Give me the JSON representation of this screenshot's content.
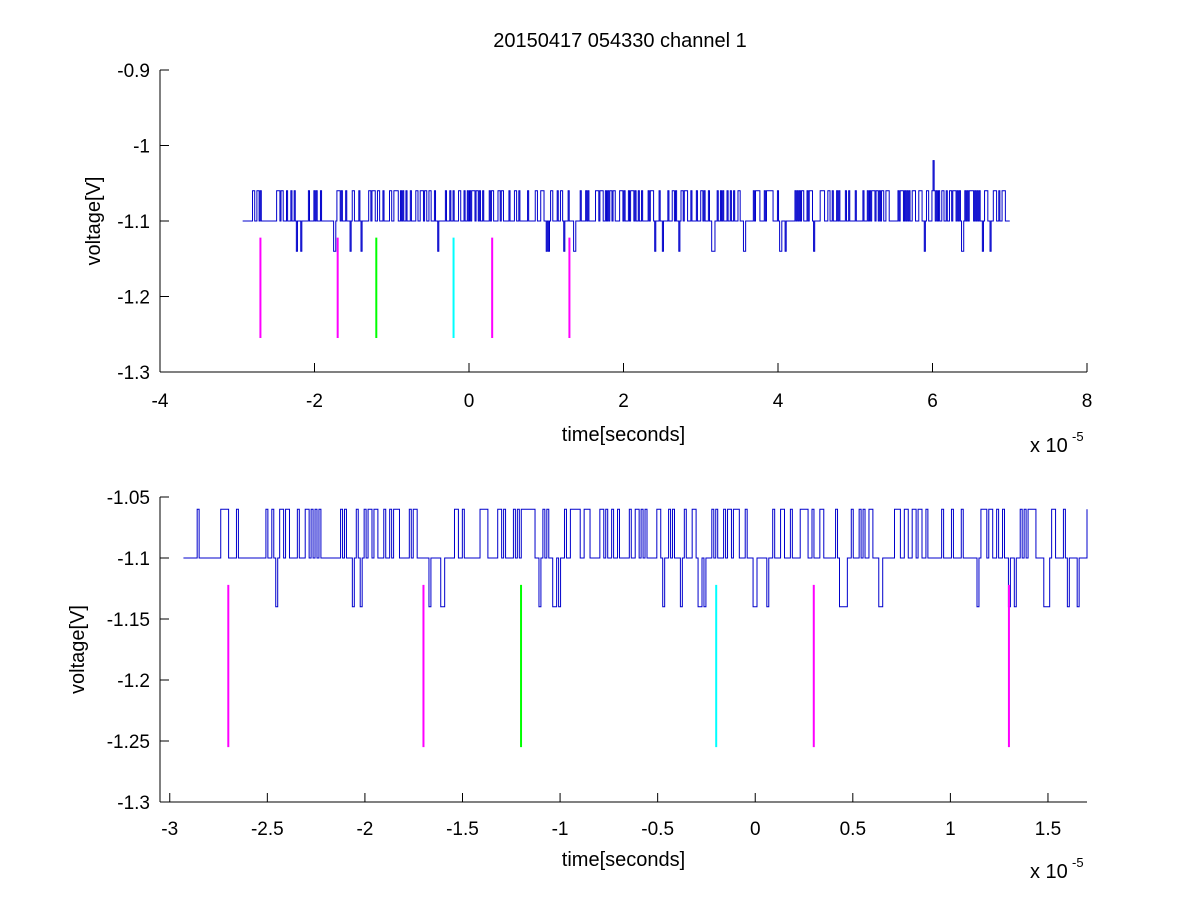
{
  "figure": {
    "title": "20150417 054330 channel 1"
  },
  "chart_data": [
    {
      "type": "line",
      "title": "20150417 054330 channel 1",
      "xlabel": "time[seconds]",
      "ylabel": "voltage[V]",
      "x_exponent_base": "x 10",
      "x_exponent_power": "-5",
      "xlim": [
        -4,
        8
      ],
      "ylim": [
        -1.3,
        -0.9
      ],
      "xticks": [
        -4,
        -2,
        0,
        2,
        4,
        6,
        8
      ],
      "xtick_labels": [
        "-4",
        "-2",
        "0",
        "2",
        "4",
        "6",
        "8"
      ],
      "yticks": [
        -1.3,
        -1.2,
        -1.1,
        -1.0,
        -0.9
      ],
      "ytick_labels": [
        "-1.3",
        "-1.2",
        "-1.1",
        "-1",
        "-0.9"
      ],
      "grid": false,
      "signal": {
        "color": "#0000cc",
        "x_start": -2.93,
        "x_end": 7.0,
        "baseline": -1.1,
        "levels": [
          -1.06,
          -1.1,
          -1.14
        ],
        "spike": {
          "x": 6.0,
          "y": -1.02
        }
      },
      "markers": [
        {
          "x": -2.7,
          "y_top": -1.122,
          "y_bottom": -1.255,
          "color": "#ff00ff"
        },
        {
          "x": -1.7,
          "y_top": -1.122,
          "y_bottom": -1.255,
          "color": "#ff00ff"
        },
        {
          "x": -1.2,
          "y_top": -1.122,
          "y_bottom": -1.255,
          "color": "#00ff00"
        },
        {
          "x": -0.2,
          "y_top": -1.122,
          "y_bottom": -1.255,
          "color": "#00ffff"
        },
        {
          "x": 0.3,
          "y_top": -1.122,
          "y_bottom": -1.255,
          "color": "#ff00ff"
        },
        {
          "x": 1.3,
          "y_top": -1.122,
          "y_bottom": -1.255,
          "color": "#ff00ff"
        }
      ]
    },
    {
      "type": "line",
      "title": "",
      "xlabel": "time[seconds]",
      "ylabel": "voltage[V]",
      "x_exponent_base": "x 10",
      "x_exponent_power": "-5",
      "xlim": [
        -3.05,
        1.7
      ],
      "ylim": [
        -1.3,
        -1.05
      ],
      "xticks": [
        -3,
        -2.5,
        -2,
        -1.5,
        -1,
        -0.5,
        0,
        0.5,
        1,
        1.5
      ],
      "xtick_labels": [
        "-3",
        "-2.5",
        "-2",
        "-1.5",
        "-1",
        "-0.5",
        "0",
        "0.5",
        "1",
        "1.5"
      ],
      "yticks": [
        -1.3,
        -1.25,
        -1.2,
        -1.15,
        -1.1,
        -1.05
      ],
      "ytick_labels": [
        "-1.3",
        "-1.25",
        "-1.2",
        "-1.15",
        "-1.1",
        "-1.05"
      ],
      "grid": false,
      "signal": {
        "color": "#0000cc",
        "x_start": -2.93,
        "x_end": 1.7,
        "baseline": -1.1,
        "levels": [
          -1.06,
          -1.1,
          -1.14
        ]
      },
      "markers": [
        {
          "x": -2.7,
          "y_top": -1.122,
          "y_bottom": -1.255,
          "color": "#ff00ff"
        },
        {
          "x": -1.7,
          "y_top": -1.122,
          "y_bottom": -1.255,
          "color": "#ff00ff"
        },
        {
          "x": -1.2,
          "y_top": -1.122,
          "y_bottom": -1.255,
          "color": "#00ff00"
        },
        {
          "x": -0.2,
          "y_top": -1.122,
          "y_bottom": -1.255,
          "color": "#00ffff"
        },
        {
          "x": 0.3,
          "y_top": -1.122,
          "y_bottom": -1.255,
          "color": "#ff00ff"
        },
        {
          "x": 1.3,
          "y_top": -1.122,
          "y_bottom": -1.255,
          "color": "#ff00ff"
        }
      ]
    }
  ]
}
